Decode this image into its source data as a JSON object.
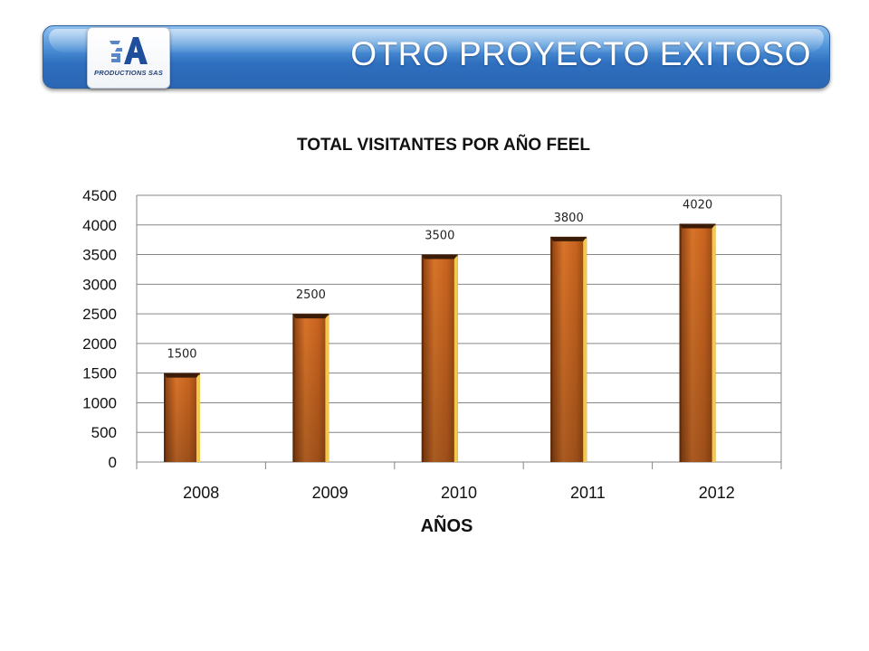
{
  "header": {
    "title": "OTRO PROYECTO EXITOSO",
    "logo_text": "PRODUCTIONS SAS"
  },
  "chart_data": {
    "type": "bar",
    "title": "TOTAL VISITANTES POR AÑO FEEL",
    "xlabel": "AÑOS",
    "ylabel": "",
    "categories": [
      "2008",
      "2009",
      "2010",
      "2011",
      "2012"
    ],
    "values": [
      1500,
      2500,
      3500,
      3800,
      4020
    ],
    "data_labels": [
      "1500",
      "2500",
      "3500",
      "3800",
      "4020"
    ],
    "ylim": [
      0,
      4500
    ],
    "yticks": [
      0,
      500,
      1000,
      1500,
      2000,
      2500,
      3000,
      3500,
      4000,
      4500
    ],
    "grid": true,
    "legend": "none",
    "colors": {
      "bar": "#c8641f",
      "bar_edge": "#f2c94c",
      "bar_top": "#3a1c08",
      "grid": "#868686"
    }
  }
}
